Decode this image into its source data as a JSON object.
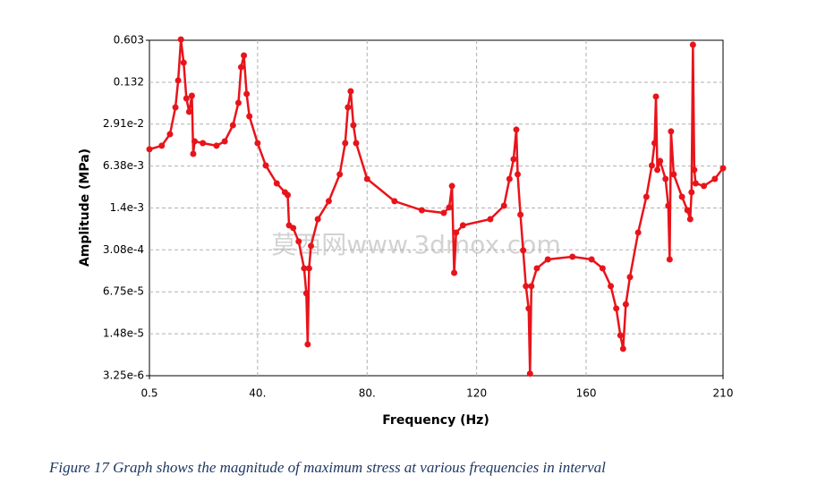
{
  "chart_data": {
    "type": "line",
    "log_y": true,
    "grid": true,
    "xlabel": "Frequency (Hz)",
    "ylabel": "Amplitude (MPa)",
    "caption": "Figure 17   Graph shows the magnitude of maximum stress at various frequencies in interval",
    "watermark": "莫西网www.3dmox.com",
    "xlim": [
      0.5,
      210
    ],
    "xticks": [
      0.5,
      {
        "value": 40,
        "label": "40."
      },
      {
        "value": 80,
        "label": "80."
      },
      120,
      160,
      210
    ],
    "ylim": [
      3.25e-06,
      0.603
    ],
    "yticks": [
      {
        "value": 3.25e-06,
        "label": "3.25e-6"
      },
      {
        "value": 1.48e-05,
        "label": "1.48e-5"
      },
      {
        "value": 6.75e-05,
        "label": "6.75e-5"
      },
      {
        "value": 0.000308,
        "label": "3.08e-4"
      },
      {
        "value": 0.0014,
        "label": "1.4e-3"
      },
      {
        "value": 0.00638,
        "label": "6.38e-3"
      },
      {
        "value": 0.0291,
        "label": "2.91e-2"
      },
      0.132,
      0.603
    ],
    "x": [
      0.5,
      5,
      8,
      10,
      11,
      12,
      13,
      14,
      15,
      16,
      16.5,
      17,
      20,
      25,
      28,
      31,
      33,
      34,
      35,
      36,
      37,
      40,
      43,
      47,
      50,
      51,
      51.5,
      53,
      55,
      57,
      57.8,
      58.3,
      58.8,
      59.5,
      62,
      66,
      70,
      72,
      73,
      74,
      75,
      76,
      80,
      90,
      100,
      108,
      110,
      111,
      111.8,
      112.5,
      115,
      125,
      130,
      132,
      133.5,
      134.5,
      135,
      136,
      137,
      138,
      139,
      139.5,
      140,
      142,
      146,
      155,
      162,
      166,
      169,
      171,
      172.5,
      173.5,
      174.5,
      176,
      179,
      182,
      184,
      185,
      185.5,
      186,
      187,
      189,
      190,
      190.5,
      191,
      192,
      195,
      197,
      198,
      198.5,
      199,
      199.5,
      200,
      203,
      207,
      210
    ],
    "series": [
      {
        "name": "Amplitude",
        "color": "#e8141b",
        "values": [
          0.0117,
          0.0133,
          0.0202,
          0.0533,
          0.141,
          0.62,
          0.268,
          0.0736,
          0.0454,
          0.0812,
          0.0099,
          0.0156,
          0.0146,
          0.0133,
          0.0156,
          0.0279,
          0.0627,
          0.228,
          0.348,
          0.0867,
          0.0386,
          0.0146,
          0.0065,
          0.00341,
          0.00247,
          0.00224,
          0.000747,
          0.00068,
          0.000417,
          0.000158,
          6.4e-05,
          1.01e-05,
          0.000158,
          0.000355,
          0.000935,
          0.00179,
          0.00472,
          0.0146,
          0.0533,
          0.0955,
          0.0279,
          0.0146,
          0.00401,
          0.00179,
          0.00129,
          0.00117,
          0.00143,
          0.0031,
          0.000134,
          0.000576,
          0.000747,
          0.000935,
          0.00152,
          0.00401,
          0.00817,
          0.0238,
          0.00472,
          0.0011,
          0.000302,
          8.3e-05,
          3.7e-05,
          3.5e-06,
          8.3e-05,
          0.000158,
          0.000218,
          0.00024,
          0.000218,
          0.000158,
          8.3e-05,
          3.7e-05,
          1.4e-05,
          8.6e-06,
          4.3e-05,
          0.000115,
          0.000576,
          0.0021,
          0.0065,
          0.0146,
          0.0787,
          0.00555,
          0.00765,
          0.00401,
          0.00152,
          0.000218,
          0.0223,
          0.00472,
          0.0021,
          0.00129,
          0.000935,
          0.00247,
          0.513,
          0.00555,
          0.00341,
          0.0031,
          0.00401,
          0.00591
        ]
      }
    ]
  }
}
